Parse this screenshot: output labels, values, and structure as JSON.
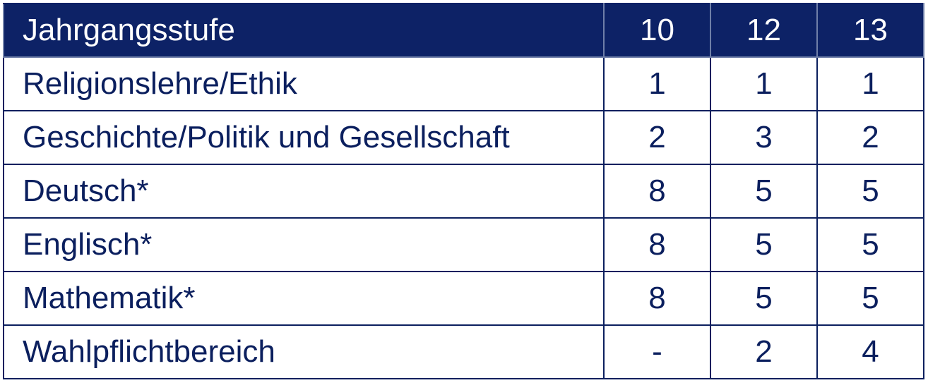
{
  "table": {
    "header": {
      "label": "Jahrgangsstufe",
      "columns": [
        "10",
        "12",
        "13"
      ]
    },
    "rows": [
      {
        "subject": "Religionslehre/Ethik",
        "values": [
          "1",
          "1",
          "1"
        ]
      },
      {
        "subject": "Geschichte/Politik und Gesellschaft",
        "values": [
          "2",
          "3",
          "2"
        ]
      },
      {
        "subject": "Deutsch*",
        "values": [
          "8",
          "5",
          "5"
        ]
      },
      {
        "subject": "Englisch*",
        "values": [
          "8",
          "5",
          "5"
        ]
      },
      {
        "subject": "Mathematik*",
        "values": [
          "8",
          "5",
          "5"
        ]
      },
      {
        "subject": "Wahlpflichtbereich",
        "values": [
          "-",
          "2",
          "4"
        ]
      }
    ],
    "colors": {
      "header_background": "#0d2266",
      "header_text": "#ffffff",
      "body_text": "#0b1f5e",
      "border": "#0b1f5e"
    }
  }
}
